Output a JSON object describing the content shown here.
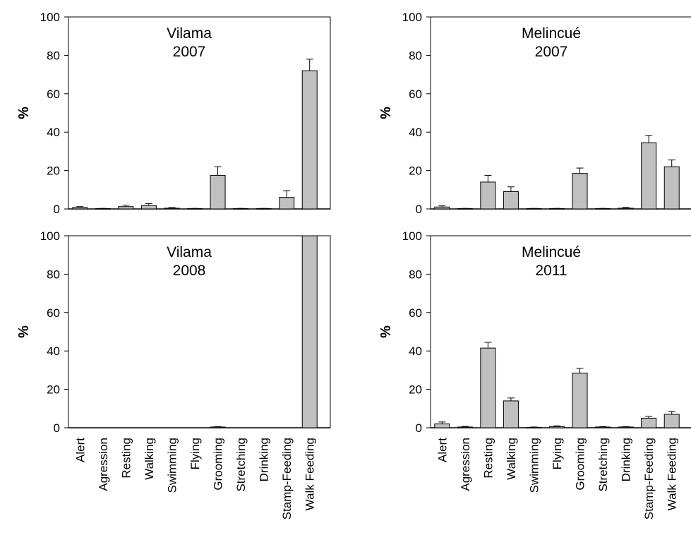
{
  "chart_data": [
    {
      "type": "bar",
      "title": [
        "Vilama",
        "2007"
      ],
      "ylabel": "%",
      "ylim": [
        0,
        100
      ],
      "yticks": [
        0,
        20,
        40,
        60,
        80,
        100
      ],
      "categories": [
        "Alert",
        "Agression",
        "Resting",
        "Walking",
        "Swimming",
        "Flying",
        "Grooming",
        "Stretching",
        "Drinking",
        "Stamp-Feeding",
        "Walk Feeding"
      ],
      "values": [
        0.8,
        0.2,
        1.2,
        1.8,
        0.4,
        0.2,
        17.5,
        0.2,
        0.2,
        6.0,
        72.0
      ],
      "errors": [
        0.4,
        0.1,
        0.8,
        1.0,
        0.3,
        0.1,
        4.5,
        0.1,
        0.1,
        3.5,
        6.0
      ],
      "show_xlabels": false
    },
    {
      "type": "bar",
      "title": [
        "Melincué",
        "2007"
      ],
      "ylabel": "%",
      "ylim": [
        0,
        100
      ],
      "yticks": [
        0,
        20,
        40,
        60,
        80,
        100
      ],
      "categories": [
        "Alert",
        "Agression",
        "Resting",
        "Walking",
        "Swimming",
        "Flying",
        "Grooming",
        "Stretching",
        "Drinking",
        "Stamp-Feeding",
        "Walk Feeding"
      ],
      "values": [
        1.0,
        0.2,
        14.0,
        9.0,
        0.2,
        0.2,
        18.5,
        0.2,
        0.4,
        34.5,
        22.0
      ],
      "errors": [
        0.6,
        0.1,
        3.5,
        2.5,
        0.1,
        0.1,
        2.8,
        0.1,
        0.4,
        3.8,
        3.5
      ],
      "show_xlabels": false
    },
    {
      "type": "bar",
      "title": [
        "Vilama",
        "2008"
      ],
      "ylabel": "%",
      "ylim": [
        0,
        100
      ],
      "yticks": [
        0,
        20,
        40,
        60,
        80,
        100
      ],
      "categories": [
        "Alert",
        "Agression",
        "Resting",
        "Walking",
        "Swimming",
        "Flying",
        "Grooming",
        "Stretching",
        "Drinking",
        "Stamp-Feeding",
        "Walk Feeding"
      ],
      "values": [
        0,
        0,
        0,
        0,
        0,
        0,
        0.4,
        0,
        0,
        0,
        100
      ],
      "errors": [
        0,
        0,
        0,
        0,
        0,
        0,
        0.2,
        0,
        0,
        0,
        0
      ],
      "show_xlabels": true
    },
    {
      "type": "bar",
      "title": [
        "Melincué",
        "2011"
      ],
      "ylabel": "%",
      "ylim": [
        0,
        100
      ],
      "yticks": [
        0,
        20,
        40,
        60,
        80,
        100
      ],
      "categories": [
        "Alert",
        "Agression",
        "Resting",
        "Walking",
        "Swimming",
        "Flying",
        "Grooming",
        "Stretching",
        "Drinking",
        "Stamp-Feeding",
        "Walk Feeding"
      ],
      "values": [
        2.0,
        0.4,
        41.5,
        14.0,
        0.2,
        0.6,
        28.5,
        0.4,
        0.4,
        5.0,
        7.0
      ],
      "errors": [
        1.0,
        0.3,
        3.0,
        1.5,
        0.2,
        0.4,
        2.5,
        0.2,
        0.2,
        1.0,
        1.5
      ],
      "show_xlabels": true
    }
  ]
}
